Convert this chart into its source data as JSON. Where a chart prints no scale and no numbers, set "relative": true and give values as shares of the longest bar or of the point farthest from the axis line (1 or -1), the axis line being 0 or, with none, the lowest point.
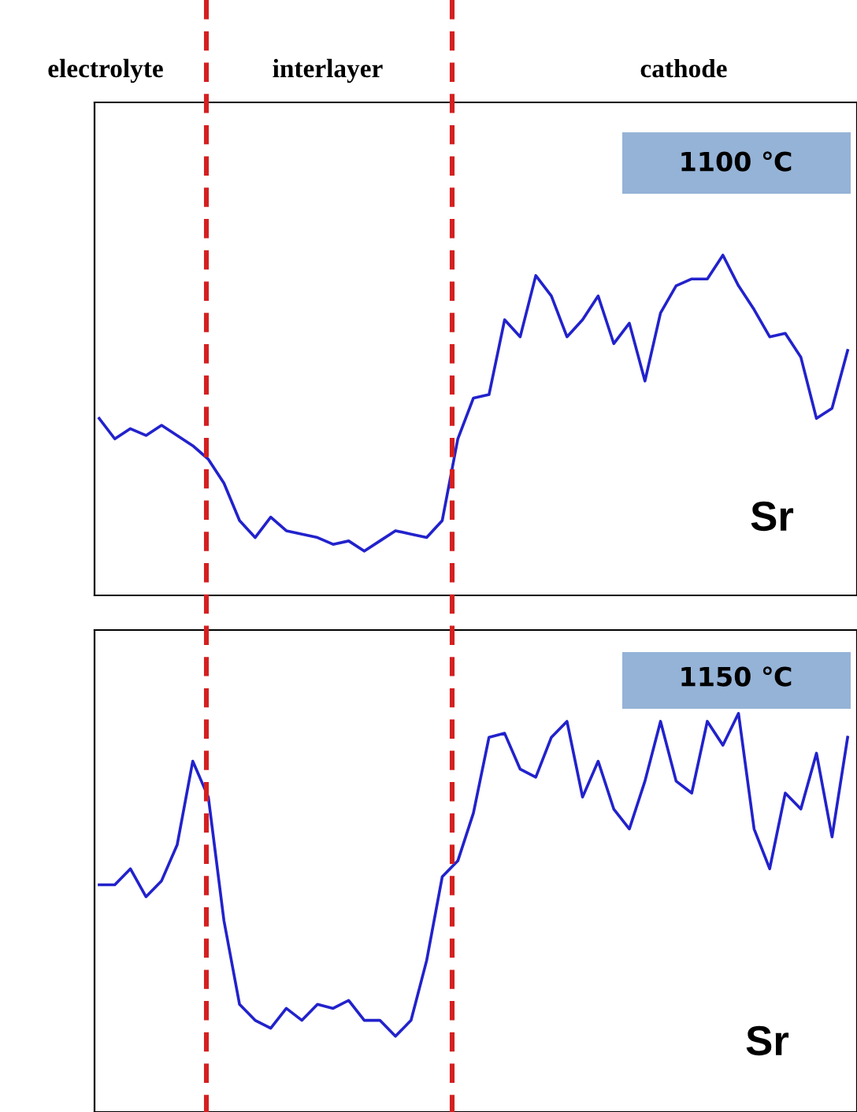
{
  "chart_data": [
    {
      "type": "line",
      "relative": true,
      "categories": [
        null,
        null,
        null,
        null,
        null,
        null,
        null,
        null,
        null,
        null,
        null,
        null,
        null,
        null,
        null,
        null,
        null,
        null,
        null,
        null,
        null,
        null,
        null,
        null,
        null,
        null,
        null,
        null,
        null,
        null,
        null,
        null,
        null,
        null,
        null,
        null,
        null,
        null,
        null,
        null,
        null,
        null,
        null,
        null,
        null,
        null,
        null,
        null,
        null
      ],
      "series": [
        {
          "color": "#2222cc",
          "values": [
            0.52,
            0.46,
            0.49,
            0.47,
            0.5,
            0.47,
            0.44,
            0.4,
            0.33,
            0.22,
            0.17,
            0.23,
            0.19,
            0.18,
            0.17,
            0.15,
            0.16,
            0.13,
            0.16,
            0.19,
            0.18,
            0.17,
            0.22,
            0.46,
            0.58,
            0.59,
            0.81,
            0.76,
            0.94,
            0.88,
            0.76,
            0.81,
            0.88,
            0.74,
            0.8,
            0.63,
            0.83,
            0.91,
            0.93,
            0.93,
            1.0,
            0.91,
            0.84,
            0.76,
            0.77,
            0.7,
            0.52,
            0.55,
            0.72
          ]
        }
      ],
      "annotations": [
        "electrolyte",
        "interlayer",
        "cathode",
        "1100 ℃",
        "Sr"
      ]
    },
    {
      "type": "line",
      "relative": true,
      "categories": [
        null,
        null,
        null,
        null,
        null,
        null,
        null,
        null,
        null,
        null,
        null,
        null,
        null,
        null,
        null,
        null,
        null,
        null,
        null,
        null,
        null,
        null,
        null,
        null,
        null,
        null,
        null,
        null,
        null,
        null,
        null,
        null,
        null,
        null,
        null,
        null,
        null,
        null,
        null,
        null,
        null,
        null,
        null,
        null,
        null,
        null,
        null,
        null,
        null
      ],
      "series": [
        {
          "color": "#2222cc",
          "values": [
            0.57,
            0.57,
            0.61,
            0.54,
            0.58,
            0.67,
            0.88,
            0.79,
            0.48,
            0.27,
            0.23,
            0.21,
            0.26,
            0.23,
            0.27,
            0.26,
            0.28,
            0.23,
            0.23,
            0.19,
            0.23,
            0.38,
            0.59,
            0.63,
            0.75,
            0.94,
            0.95,
            0.86,
            0.84,
            0.94,
            0.98,
            0.79,
            0.88,
            0.76,
            0.71,
            0.83,
            0.98,
            0.83,
            0.8,
            0.98,
            0.92,
            1.0,
            0.71,
            0.61,
            0.8,
            0.76,
            0.9,
            0.69,
            0.94
          ]
        }
      ],
      "annotations": [
        "1150 ℃",
        "Sr"
      ]
    }
  ]
}
